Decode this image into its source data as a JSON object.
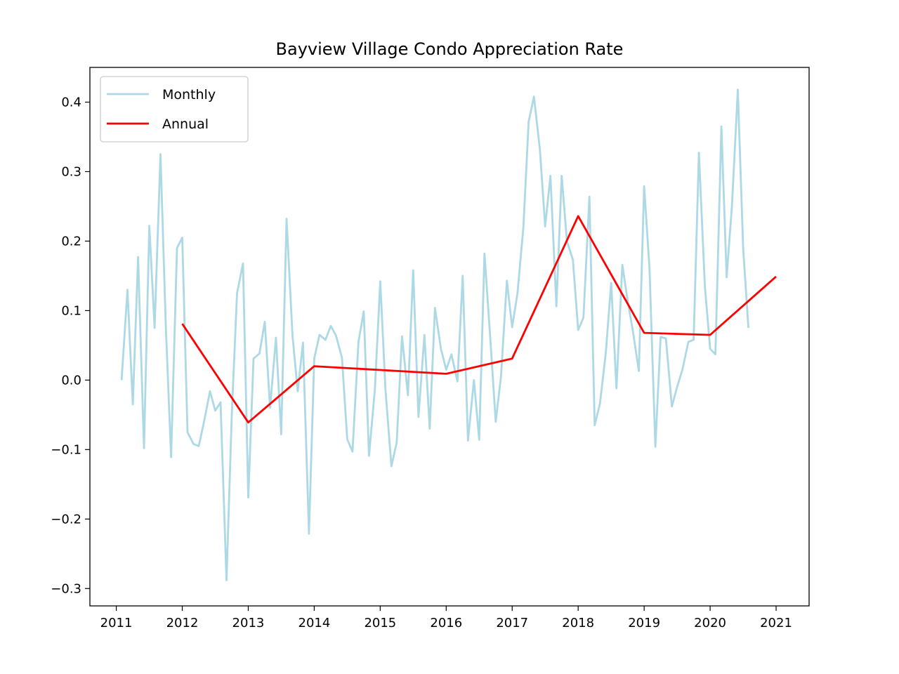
{
  "chart_data": {
    "type": "line",
    "title": "Bayview Village Condo Appreciation Rate",
    "xlabel": "",
    "ylabel": "",
    "xlim": [
      2010.6,
      2021.5
    ],
    "ylim": [
      -0.325,
      0.45
    ],
    "x_ticks": [
      2011,
      2012,
      2013,
      2014,
      2015,
      2016,
      2017,
      2018,
      2019,
      2020,
      2021
    ],
    "x_tick_labels": [
      "2011",
      "2012",
      "2013",
      "2014",
      "2015",
      "2016",
      "2017",
      "2018",
      "2019",
      "2020",
      "2021"
    ],
    "y_ticks": [
      -0.3,
      -0.2,
      -0.1,
      0.0,
      0.1,
      0.2,
      0.3,
      0.4
    ],
    "y_tick_labels": [
      "−0.3",
      "−0.2",
      "−0.1",
      "0.0",
      "0.1",
      "0.2",
      "0.3",
      "0.4"
    ],
    "grid": false,
    "legend_position": "upper-left",
    "series": [
      {
        "name": "Monthly",
        "color": "#add8e6",
        "x": [
          2011.08,
          2011.17,
          2011.25,
          2011.33,
          2011.42,
          2011.5,
          2011.58,
          2011.67,
          2011.75,
          2011.83,
          2011.92,
          2012.0,
          2012.08,
          2012.17,
          2012.25,
          2012.33,
          2012.42,
          2012.5,
          2012.58,
          2012.67,
          2012.75,
          2012.83,
          2012.92,
          2013.0,
          2013.08,
          2013.17,
          2013.25,
          2013.33,
          2013.42,
          2013.5,
          2013.58,
          2013.67,
          2013.75,
          2013.83,
          2013.92,
          2014.0,
          2014.08,
          2014.17,
          2014.25,
          2014.33,
          2014.42,
          2014.5,
          2014.58,
          2014.67,
          2014.75,
          2014.83,
          2014.92,
          2015.0,
          2015.08,
          2015.17,
          2015.25,
          2015.33,
          2015.42,
          2015.5,
          2015.58,
          2015.67,
          2015.75,
          2015.83,
          2015.92,
          2016.0,
          2016.08,
          2016.17,
          2016.25,
          2016.33,
          2016.42,
          2016.5,
          2016.58,
          2016.67,
          2016.75,
          2016.83,
          2016.92,
          2017.0,
          2017.08,
          2017.17,
          2017.25,
          2017.33,
          2017.42,
          2017.5,
          2017.58,
          2017.67,
          2017.75,
          2017.83,
          2017.92,
          2018.0,
          2018.08,
          2018.17,
          2018.25,
          2018.33,
          2018.42,
          2018.5,
          2018.58,
          2018.67,
          2018.75,
          2018.83,
          2018.92,
          2019.0,
          2019.08,
          2019.17,
          2019.25,
          2019.33,
          2019.42,
          2019.5,
          2019.58,
          2019.67,
          2019.75,
          2019.83,
          2019.92,
          2020.0,
          2020.08,
          2020.17,
          2020.25,
          2020.33,
          2020.42,
          2020.5,
          2020.58
        ],
        "values": [
          0.0,
          0.13,
          -0.035,
          0.177,
          -0.098,
          0.222,
          0.075,
          0.325,
          0.08,
          -0.111,
          0.19,
          0.205,
          -0.075,
          -0.092,
          -0.095,
          -0.06,
          -0.016,
          -0.044,
          -0.032,
          -0.288,
          -0.05,
          0.125,
          0.168,
          -0.169,
          0.031,
          0.038,
          0.084,
          -0.04,
          0.061,
          -0.078,
          0.232,
          0.065,
          -0.016,
          0.054,
          -0.221,
          0.031,
          0.065,
          0.058,
          0.078,
          0.064,
          0.032,
          -0.085,
          -0.103,
          0.055,
          0.099,
          -0.109,
          -0.013,
          0.142,
          -0.015,
          -0.124,
          -0.09,
          0.063,
          -0.022,
          0.158,
          -0.053,
          0.065,
          -0.07,
          0.104,
          0.045,
          0.015,
          0.037,
          -0.002,
          0.15,
          -0.087,
          0.0,
          -0.086,
          0.182,
          0.058,
          -0.06,
          0.005,
          0.143,
          0.076,
          0.125,
          0.22,
          0.372,
          0.408,
          0.332,
          0.221,
          0.294,
          0.106,
          0.294,
          0.2,
          0.173,
          0.072,
          0.09,
          0.264,
          -0.065,
          -0.034,
          0.04,
          0.14,
          -0.012,
          0.166,
          0.114,
          0.07,
          0.013,
          0.279,
          0.162,
          -0.096,
          0.062,
          0.06,
          -0.038,
          -0.01,
          0.015,
          0.055,
          0.058,
          0.327,
          0.135,
          0.045,
          0.037,
          0.365,
          0.148,
          0.25,
          0.418,
          0.19,
          0.075
        ]
      },
      {
        "name": "Annual",
        "color": "#ff0000",
        "x": [
          2012,
          2013,
          2014,
          2016,
          2017,
          2018,
          2019,
          2020,
          2021
        ],
        "values": [
          0.081,
          -0.061,
          0.02,
          0.009,
          0.031,
          0.236,
          0.068,
          0.065,
          0.149
        ]
      }
    ]
  }
}
